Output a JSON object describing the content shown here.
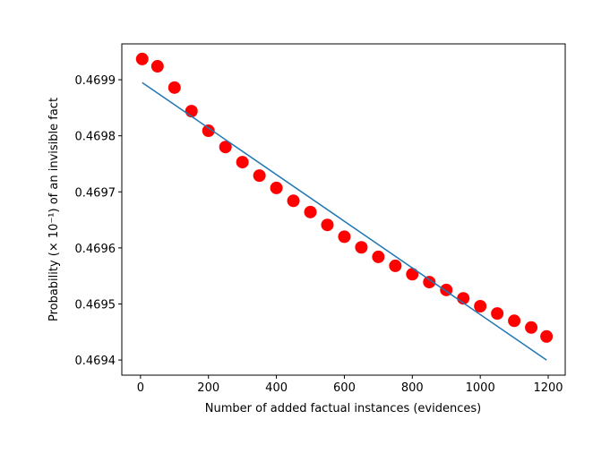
{
  "chart_data": {
    "type": "scatter",
    "xlabel": "Number of added factual instances (evidences)",
    "ylabel": "Probability (× 10⁻¹) of an invisible fact",
    "xlim": [
      -55,
      1250
    ],
    "ylim": [
      0.469373,
      0.469964
    ],
    "xticks": [
      0,
      200,
      400,
      600,
      800,
      1000,
      1200
    ],
    "yticks": [
      0.4694,
      0.4695,
      0.4696,
      0.4697,
      0.4698,
      0.4699
    ],
    "grid": false,
    "series": [
      {
        "type": "scatter",
        "color": "#ff0000",
        "x": [
          5,
          50,
          100,
          150,
          200,
          250,
          300,
          350,
          400,
          450,
          500,
          550,
          600,
          650,
          700,
          750,
          800,
          850,
          900,
          950,
          1000,
          1050,
          1100,
          1150,
          1195
        ],
        "values": [
          0.469937,
          0.469924,
          0.469886,
          0.469844,
          0.469809,
          0.46978,
          0.469753,
          0.469729,
          0.469707,
          0.469684,
          0.469664,
          0.469641,
          0.46962,
          0.469601,
          0.469584,
          0.469568,
          0.469553,
          0.469539,
          0.469525,
          0.46951,
          0.469496,
          0.469483,
          0.46947,
          0.469458,
          0.469442
        ]
      },
      {
        "type": "line",
        "color": "#1f77b4",
        "x": [
          5,
          1195
        ],
        "values": [
          0.469895,
          0.4694
        ]
      }
    ]
  }
}
